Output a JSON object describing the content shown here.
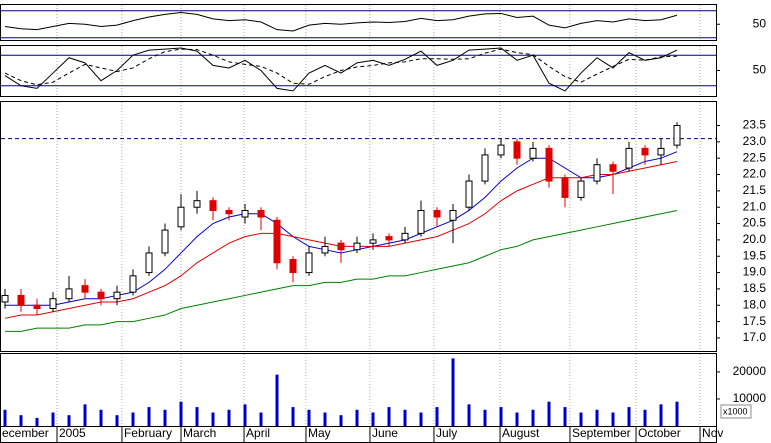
{
  "chart_data": [
    {
      "type": "line",
      "color": "#000000",
      "ylim": [
        15,
        95
      ],
      "yticks": [
        50
      ],
      "reference_levels": [
        20,
        80
      ],
      "reference_color": "#00008b",
      "values": [
        45,
        40,
        38,
        45,
        52,
        50,
        45,
        48,
        58,
        66,
        72,
        76,
        72,
        62,
        58,
        60,
        55,
        38,
        35,
        48,
        52,
        50,
        53,
        55,
        54,
        56,
        63,
        58,
        60,
        68,
        73,
        74,
        65,
        68,
        48,
        42,
        52,
        58,
        55,
        62,
        58,
        60,
        70
      ]
    },
    {
      "type": "line",
      "ylim": [
        0,
        100
      ],
      "yticks": [
        50
      ],
      "reference_levels": [
        20,
        80
      ],
      "reference_color": "#00008b",
      "series": [
        {
          "color": "#000000",
          "dash": false,
          "values": [
            40,
            20,
            15,
            45,
            75,
            65,
            30,
            50,
            80,
            90,
            92,
            94,
            88,
            60,
            55,
            70,
            50,
            15,
            10,
            45,
            60,
            45,
            65,
            70,
            60,
            72,
            88,
            60,
            70,
            90,
            92,
            94,
            70,
            80,
            25,
            10,
            45,
            75,
            55,
            85,
            70,
            75,
            90
          ]
        },
        {
          "color": "#000000",
          "dash": true,
          "values": [
            45,
            30,
            22,
            27,
            45,
            62,
            55,
            48,
            55,
            73,
            87,
            92,
            91,
            80,
            67,
            62,
            58,
            45,
            25,
            23,
            38,
            50,
            57,
            60,
            65,
            67,
            73,
            73,
            72,
            73,
            84,
            92,
            85,
            81,
            58,
            38,
            27,
            43,
            58,
            72,
            70,
            77,
            78
          ]
        }
      ]
    },
    {
      "type": "candlestick",
      "ylim": [
        16.6,
        24.25
      ],
      "up_color": "#000000",
      "down_color": "#e00000",
      "reference_line": 23.1,
      "reference_color": "#00008b",
      "yticks": [
        {
          "value": 17,
          "label": "17.0"
        },
        17.5,
        {
          "value": 18,
          "label": "18.0"
        },
        18.5,
        {
          "value": 19,
          "label": "19.0"
        },
        19.5,
        {
          "value": 20,
          "label": "20.0"
        },
        20.5,
        {
          "value": 21,
          "label": "21.0"
        },
        21.5,
        {
          "value": 22,
          "label": "22.0"
        },
        22.5,
        {
          "value": 23,
          "label": "23.0"
        },
        23.5
      ],
      "open": [
        18.1,
        18.3,
        18.0,
        17.9,
        18.2,
        18.6,
        18.4,
        18.2,
        18.4,
        19.0,
        19.6,
        20.4,
        21.0,
        21.2,
        20.9,
        20.7,
        20.9,
        20.6,
        19.4,
        19.0,
        19.6,
        19.9,
        19.7,
        19.9,
        20.1,
        20.0,
        20.2,
        20.9,
        20.6,
        21.0,
        21.8,
        22.6,
        23.0,
        22.5,
        22.8,
        21.9,
        21.3,
        21.8,
        22.3,
        22.2,
        22.8,
        22.6,
        22.9
      ],
      "high": [
        18.5,
        18.5,
        18.2,
        18.4,
        18.9,
        18.8,
        18.5,
        18.6,
        19.1,
        19.8,
        20.5,
        21.4,
        21.5,
        21.3,
        21.0,
        21.1,
        21.0,
        20.7,
        19.5,
        19.8,
        20.1,
        20.0,
        20.1,
        20.2,
        20.2,
        20.4,
        21.2,
        21.0,
        21.1,
        22.0,
        22.8,
        23.1,
        23.1,
        23.0,
        22.9,
        22.0,
        21.9,
        22.5,
        22.4,
        23.0,
        22.9,
        23.1,
        23.6
      ],
      "low": [
        17.9,
        17.8,
        17.7,
        17.8,
        18.1,
        18.2,
        18.0,
        18.0,
        18.3,
        18.9,
        19.5,
        20.3,
        20.8,
        20.6,
        20.6,
        20.5,
        20.3,
        19.1,
        18.7,
        18.9,
        19.5,
        19.3,
        19.6,
        19.7,
        19.8,
        19.9,
        20.1,
        20.4,
        19.9,
        20.9,
        21.7,
        22.5,
        22.3,
        22.4,
        21.6,
        21.0,
        21.2,
        21.7,
        21.4,
        22.1,
        22.3,
        22.3,
        22.8
      ],
      "close": [
        18.3,
        18.0,
        17.9,
        18.2,
        18.5,
        18.4,
        18.2,
        18.4,
        18.9,
        19.6,
        20.3,
        21.0,
        21.2,
        20.9,
        20.8,
        20.9,
        20.7,
        19.3,
        19.0,
        19.6,
        19.8,
        19.7,
        19.9,
        20.0,
        20.0,
        20.2,
        20.9,
        20.7,
        20.9,
        21.8,
        22.6,
        22.9,
        22.5,
        22.8,
        21.8,
        21.3,
        21.8,
        22.3,
        22.1,
        22.8,
        22.6,
        22.8,
        23.5
      ],
      "series": [
        {
          "color": "#0000cc",
          "values": [
            18.0,
            18.0,
            18.0,
            18.0,
            18.1,
            18.2,
            18.2,
            18.3,
            18.4,
            18.7,
            19.1,
            19.6,
            20.1,
            20.5,
            20.7,
            20.8,
            20.8,
            20.5,
            20.1,
            19.8,
            19.7,
            19.6,
            19.7,
            19.8,
            19.9,
            20.0,
            20.2,
            20.4,
            20.6,
            20.9,
            21.3,
            21.8,
            22.2,
            22.5,
            22.5,
            22.2,
            21.9,
            21.9,
            22.0,
            22.2,
            22.4,
            22.5,
            22.7
          ]
        },
        {
          "color": "#e00000",
          "values": [
            17.6,
            17.7,
            17.7,
            17.8,
            17.9,
            18.0,
            18.1,
            18.1,
            18.2,
            18.4,
            18.6,
            18.9,
            19.3,
            19.6,
            19.9,
            20.1,
            20.2,
            20.2,
            20.1,
            20.0,
            19.9,
            19.8,
            19.8,
            19.8,
            19.8,
            19.9,
            20.0,
            20.1,
            20.3,
            20.5,
            20.8,
            21.2,
            21.5,
            21.7,
            21.9,
            21.9,
            21.9,
            22.0,
            22.0,
            22.1,
            22.2,
            22.3,
            22.4
          ]
        },
        {
          "color": "#008000",
          "values": [
            17.2,
            17.2,
            17.3,
            17.3,
            17.3,
            17.4,
            17.4,
            17.5,
            17.5,
            17.6,
            17.7,
            17.9,
            18.0,
            18.1,
            18.2,
            18.3,
            18.4,
            18.5,
            18.6,
            18.6,
            18.7,
            18.7,
            18.8,
            18.8,
            18.9,
            18.9,
            19.0,
            19.1,
            19.2,
            19.3,
            19.5,
            19.7,
            19.8,
            20.0,
            20.1,
            20.2,
            20.3,
            20.4,
            20.5,
            20.6,
            20.7,
            20.8,
            20.9
          ]
        }
      ]
    },
    {
      "type": "bar",
      "color": "#0000cc",
      "ylim": [
        0,
        27000
      ],
      "yticks": [
        10000,
        20000
      ],
      "unit": "x1000",
      "xlim": [
        -0.3125,
        44.4375
      ],
      "xticks": [
        {
          "value": -0.3125,
          "label": "ecember"
        },
        {
          "value": 3.25,
          "label": "2005"
        },
        {
          "value": 7.31,
          "label": "February"
        },
        {
          "value": 11,
          "label": "March"
        },
        {
          "value": 14.94,
          "label": "April"
        },
        {
          "value": 18.81,
          "label": "May"
        },
        {
          "value": 22.81,
          "label": "June"
        },
        {
          "value": 26.81,
          "label": "July"
        },
        {
          "value": 30.94,
          "label": "August"
        },
        {
          "value": 35.31,
          "label": "September"
        },
        {
          "value": 39.44,
          "label": "October"
        },
        {
          "value": 43.44,
          "label": "Nov"
        }
      ],
      "values": [
        6000,
        4000,
        3000,
        5000,
        4000,
        8000,
        6000,
        4000,
        5000,
        7000,
        6000,
        9000,
        7000,
        5000,
        6000,
        8000,
        5000,
        19000,
        7000,
        6000,
        5000,
        4000,
        6000,
        5000,
        7000,
        6000,
        5000,
        7000,
        25000,
        8000,
        6000,
        7000,
        5000,
        6000,
        9000,
        7000,
        5000,
        6000,
        5000,
        7000,
        6000,
        8000,
        9000
      ]
    }
  ]
}
